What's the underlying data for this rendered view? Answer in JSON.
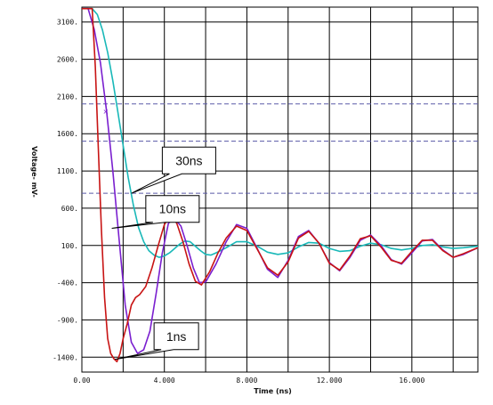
{
  "chart_data": {
    "type": "line",
    "xlabel": "Time (ns)",
    "ylabel": "Voltage- mV-",
    "xlim": [
      0,
      19.2
    ],
    "ylim": [
      -1600,
      3300
    ],
    "x_ticks": [
      0,
      2,
      4,
      6,
      8,
      10,
      12,
      14,
      16,
      18
    ],
    "x_tick_labels": [
      "0.00",
      "",
      "4.000",
      "",
      "8.000",
      "",
      "12.000",
      "",
      "16.000",
      ""
    ],
    "y_ticks": [
      3100,
      2600,
      2100,
      1600,
      1100,
      600,
      100,
      -400,
      -900,
      -1400
    ],
    "y_tick_labels": [
      "3100.",
      "2600.",
      "2100.",
      "1600.",
      "1100.",
      "600.",
      "100.",
      "-400.",
      "-900.",
      "-1400."
    ],
    "grid": true,
    "reference_lines": [
      2000,
      1500,
      800
    ],
    "colors": {
      "grid": "#000000",
      "reference": "#5a5aa8",
      "series_30ns": "#19b8b8",
      "series_10ns": "#7a1fcf",
      "series_1ns": "#c81414"
    },
    "series": [
      {
        "name": "30ns",
        "points": [
          [
            0,
            3280
          ],
          [
            0.5,
            3280
          ],
          [
            0.75,
            3200
          ],
          [
            1,
            2990
          ],
          [
            1.25,
            2690
          ],
          [
            1.5,
            2310
          ],
          [
            1.75,
            1880
          ],
          [
            2,
            1440
          ],
          [
            2.25,
            1010
          ],
          [
            2.5,
            640
          ],
          [
            2.75,
            340
          ],
          [
            3,
            150
          ],
          [
            3.25,
            30
          ],
          [
            3.5,
            -30
          ],
          [
            3.75,
            -60
          ],
          [
            4,
            -40
          ],
          [
            4.25,
            0
          ],
          [
            4.5,
            60
          ],
          [
            4.75,
            120
          ],
          [
            5,
            160
          ],
          [
            5.25,
            150
          ],
          [
            5.5,
            90
          ],
          [
            5.75,
            30
          ],
          [
            6,
            -20
          ],
          [
            6.25,
            -30
          ],
          [
            6.5,
            0
          ],
          [
            7,
            70
          ],
          [
            7.5,
            150
          ],
          [
            8,
            150
          ],
          [
            8.5,
            90
          ],
          [
            9,
            10
          ],
          [
            9.5,
            -20
          ],
          [
            10,
            0
          ],
          [
            10.5,
            80
          ],
          [
            11,
            140
          ],
          [
            11.5,
            130
          ],
          [
            12,
            60
          ],
          [
            12.5,
            20
          ],
          [
            13,
            30
          ],
          [
            13.5,
            90
          ],
          [
            14,
            130
          ],
          [
            14.5,
            110
          ],
          [
            15,
            60
          ],
          [
            15.5,
            40
          ],
          [
            16,
            60
          ],
          [
            16.5,
            100
          ],
          [
            17,
            110
          ],
          [
            17.5,
            80
          ],
          [
            18,
            60
          ],
          [
            18.5,
            70
          ],
          [
            19.2,
            90
          ]
        ]
      },
      {
        "name": "10ns",
        "points": [
          [
            0,
            3280
          ],
          [
            0.3,
            3280
          ],
          [
            0.6,
            3000
          ],
          [
            0.9,
            2550
          ],
          [
            1.2,
            1900
          ],
          [
            1.5,
            1100
          ],
          [
            1.8,
            200
          ],
          [
            2.1,
            -700
          ],
          [
            2.4,
            -1200
          ],
          [
            2.7,
            -1350
          ],
          [
            3,
            -1300
          ],
          [
            3.3,
            -1050
          ],
          [
            3.6,
            -550
          ],
          [
            3.9,
            0
          ],
          [
            4.2,
            400
          ],
          [
            4.5,
            460
          ],
          [
            4.8,
            360
          ],
          [
            5.1,
            100
          ],
          [
            5.4,
            -200
          ],
          [
            5.7,
            -400
          ],
          [
            6,
            -390
          ],
          [
            6.5,
            -150
          ],
          [
            7,
            150
          ],
          [
            7.5,
            380
          ],
          [
            8,
            330
          ],
          [
            8.5,
            60
          ],
          [
            9,
            -220
          ],
          [
            9.5,
            -330
          ],
          [
            10,
            -100
          ],
          [
            10.5,
            220
          ],
          [
            11,
            300
          ],
          [
            11.5,
            130
          ],
          [
            12,
            -130
          ],
          [
            12.5,
            -240
          ],
          [
            13,
            -60
          ],
          [
            13.5,
            170
          ],
          [
            14,
            240
          ],
          [
            14.5,
            100
          ],
          [
            15,
            -90
          ],
          [
            15.5,
            -150
          ],
          [
            16,
            0
          ],
          [
            16.5,
            160
          ],
          [
            17,
            180
          ],
          [
            17.5,
            40
          ],
          [
            18,
            -60
          ],
          [
            18.5,
            -20
          ],
          [
            19.2,
            70
          ]
        ]
      },
      {
        "name": "1ns",
        "points": [
          [
            0,
            3280
          ],
          [
            0.5,
            3280
          ],
          [
            0.65,
            2500
          ],
          [
            0.8,
            1400
          ],
          [
            0.95,
            300
          ],
          [
            1.1,
            -600
          ],
          [
            1.25,
            -1150
          ],
          [
            1.4,
            -1350
          ],
          [
            1.55,
            -1420
          ],
          [
            1.7,
            -1460
          ],
          [
            1.85,
            -1350
          ],
          [
            2,
            -1150
          ],
          [
            2.2,
            -950
          ],
          [
            2.4,
            -700
          ],
          [
            2.6,
            -600
          ],
          [
            2.8,
            -560
          ],
          [
            3.1,
            -450
          ],
          [
            3.4,
            -200
          ],
          [
            3.7,
            100
          ],
          [
            4,
            380
          ],
          [
            4.3,
            500
          ],
          [
            4.6,
            400
          ],
          [
            4.9,
            150
          ],
          [
            5.2,
            -150
          ],
          [
            5.5,
            -380
          ],
          [
            5.8,
            -430
          ],
          [
            6.2,
            -250
          ],
          [
            6.6,
            0
          ],
          [
            7,
            200
          ],
          [
            7.5,
            360
          ],
          [
            8,
            300
          ],
          [
            8.5,
            50
          ],
          [
            9,
            -200
          ],
          [
            9.5,
            -300
          ],
          [
            10,
            -120
          ],
          [
            10.5,
            200
          ],
          [
            11,
            290
          ],
          [
            11.5,
            130
          ],
          [
            12,
            -140
          ],
          [
            12.5,
            -230
          ],
          [
            13,
            -40
          ],
          [
            13.5,
            190
          ],
          [
            14,
            230
          ],
          [
            14.5,
            80
          ],
          [
            15,
            -100
          ],
          [
            15.5,
            -140
          ],
          [
            16,
            20
          ],
          [
            16.5,
            170
          ],
          [
            17,
            170
          ],
          [
            17.5,
            30
          ],
          [
            18,
            -60
          ],
          [
            18.5,
            -10
          ],
          [
            19.2,
            70
          ]
        ]
      }
    ],
    "annotations": [
      {
        "text": "30ns",
        "series": "30ns",
        "target": [
          2.4,
          800
        ],
        "box_at": [
          3.9,
          1420
        ]
      },
      {
        "text": "10ns",
        "series": "10ns",
        "target": [
          1.45,
          330
        ],
        "box_at": [
          3.1,
          770
        ]
      },
      {
        "text": "1ns",
        "series": "1ns",
        "target": [
          1.6,
          -1430
        ],
        "box_at": [
          3.5,
          -940
        ]
      }
    ]
  }
}
